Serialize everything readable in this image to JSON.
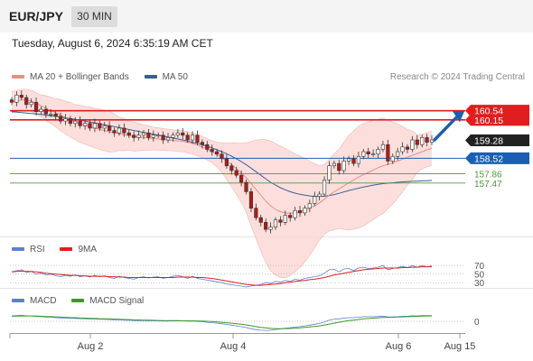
{
  "header": {
    "symbol": "EUR/JPY",
    "timeframe": "30 MIN",
    "datetime": "Tuesday, August 6, 2024 6:35:19 AM CET"
  },
  "credit": "Research © 2024 Trading Central",
  "colors": {
    "bollinger": "#f28b82",
    "bollinger_fill": "#fbd9d6",
    "ma20": "#f28b82",
    "ma50": "#3b5d9a",
    "rsi": "#5b7fd6",
    "rsi_ma": "#e01e1e",
    "macd": "#5b7fd6",
    "macd_signal": "#3a9a2a",
    "resistance": "#e01e1e",
    "pivot": "#1a5fb4",
    "support": "#4c9a3a",
    "current": "#222222",
    "up_candle": "#ffffff",
    "down_candle": "#b01a1a",
    "arrow": "#1f5fa8"
  },
  "chart_data": [
    {
      "type": "candlestick",
      "title": "",
      "legend": [
        "MA 20 + Bollinger Bands",
        "MA 50"
      ],
      "ylim": [
        155.2,
        161.6
      ],
      "x_ticks": [
        "Aug 2",
        "Aug 4",
        "Aug 6",
        "Aug 15"
      ],
      "price_labels": [
        {
          "value": "160.54",
          "kind": "resistance"
        },
        {
          "value": "160.15",
          "kind": "resistance"
        },
        {
          "value": "159.28",
          "kind": "current"
        },
        {
          "value": "158.52",
          "kind": "pivot"
        },
        {
          "value": "157.86",
          "kind": "support"
        },
        {
          "value": "157.47",
          "kind": "support"
        }
      ],
      "close": [
        160.9,
        161.2,
        161.1,
        160.8,
        160.9,
        160.5,
        160.6,
        160.4,
        160.4,
        160.3,
        160.1,
        160.2,
        160.0,
        160.1,
        159.9,
        160.0,
        159.8,
        160.0,
        159.8,
        159.9,
        159.7,
        159.6,
        159.8,
        159.6,
        159.5,
        159.4,
        159.5,
        159.6,
        159.4,
        159.5,
        159.5,
        159.3,
        159.4,
        159.5,
        159.6,
        159.5,
        159.3,
        159.5,
        159.2,
        159.1,
        158.9,
        158.8,
        158.7,
        158.5,
        158.2,
        158.0,
        157.8,
        157.5,
        157.1,
        156.4,
        156.0,
        155.8,
        155.5,
        155.6,
        155.9,
        155.8,
        156.1,
        156.0,
        156.3,
        156.2,
        156.4,
        156.6,
        156.9,
        157.0,
        157.6,
        158.2,
        158.3,
        158.0,
        158.4,
        158.5,
        158.3,
        158.6,
        158.8,
        158.7,
        158.7,
        158.9,
        159.1,
        158.4,
        158.6,
        158.8,
        159.0,
        158.9,
        159.3,
        159.1,
        159.4,
        159.2,
        159.3
      ],
      "ma20": [
        160.9,
        160.95,
        161.0,
        161.0,
        160.95,
        160.85,
        160.75,
        160.65,
        160.55,
        160.45,
        160.35,
        160.25,
        160.15,
        160.05,
        159.98,
        159.92,
        159.86,
        159.8,
        159.75,
        159.7,
        159.65,
        159.6,
        159.56,
        159.52,
        159.48,
        159.44,
        159.42,
        159.4,
        159.38,
        159.36,
        159.34,
        159.32,
        159.3,
        159.28,
        159.26,
        159.24,
        159.2,
        159.15,
        159.08,
        159.0,
        158.9,
        158.8,
        158.68,
        158.55,
        158.4,
        158.25,
        158.08,
        157.9,
        157.7,
        157.45,
        157.2,
        156.95,
        156.7,
        156.5,
        156.35,
        156.25,
        156.2,
        156.18,
        156.2,
        156.25,
        156.32,
        156.4,
        156.5,
        156.62,
        156.78,
        156.95,
        157.1,
        157.22,
        157.35,
        157.48,
        157.6,
        157.72,
        157.82,
        157.92,
        158.02,
        158.12,
        158.2,
        158.26,
        158.32,
        158.4,
        158.48,
        158.56,
        158.64,
        158.72,
        158.8,
        158.88,
        158.95
      ],
      "ma50": [
        160.5,
        160.48,
        160.46,
        160.44,
        160.42,
        160.4,
        160.38,
        160.35,
        160.32,
        160.3,
        160.27,
        160.24,
        160.2,
        160.17,
        160.14,
        160.1,
        160.06,
        160.02,
        159.98,
        159.94,
        159.9,
        159.86,
        159.82,
        159.78,
        159.74,
        159.7,
        159.66,
        159.62,
        159.58,
        159.54,
        159.5,
        159.46,
        159.42,
        159.38,
        159.34,
        159.3,
        159.25,
        159.2,
        159.15,
        159.09,
        159.03,
        158.96,
        158.88,
        158.8,
        158.71,
        158.61,
        158.5,
        158.38,
        158.25,
        158.1,
        157.95,
        157.8,
        157.65,
        157.5,
        157.38,
        157.27,
        157.18,
        157.1,
        157.04,
        156.99,
        156.95,
        156.92,
        156.9,
        156.9,
        156.91,
        156.94,
        156.98,
        157.03,
        157.09,
        157.15,
        157.2,
        157.25,
        157.3,
        157.34,
        157.38,
        157.41,
        157.44,
        157.46,
        157.48,
        157.5,
        157.52,
        157.53,
        157.54,
        157.55,
        157.56,
        157.57,
        157.58
      ]
    },
    {
      "type": "line",
      "title": "",
      "legend": [
        "RSI",
        "9MA"
      ],
      "levels": [
        "70",
        "50",
        "30"
      ],
      "ylim": [
        20,
        85
      ],
      "rsi": [
        55,
        58,
        60,
        54,
        56,
        50,
        52,
        48,
        50,
        46,
        44,
        47,
        45,
        48,
        44,
        46,
        43,
        47,
        44,
        46,
        42,
        40,
        45,
        42,
        40,
        38,
        42,
        44,
        41,
        43,
        44,
        40,
        42,
        45,
        47,
        44,
        40,
        45,
        40,
        38,
        36,
        34,
        32,
        30,
        27,
        25,
        24,
        22,
        20,
        22,
        24,
        26,
        30,
        28,
        33,
        31,
        35,
        33,
        38,
        36,
        40,
        42,
        44,
        46,
        52,
        60,
        61,
        55,
        62,
        63,
        58,
        64,
        66,
        63,
        64,
        66,
        70,
        60,
        63,
        65,
        68,
        65,
        70,
        66,
        70,
        67,
        69
      ],
      "rsi_ma": [
        55,
        56,
        57,
        56,
        56,
        55,
        54,
        52,
        51,
        50,
        49,
        48,
        47,
        47,
        46,
        46,
        45,
        45,
        45,
        45,
        44,
        44,
        43,
        43,
        42,
        42,
        42,
        42,
        42,
        42,
        42,
        42,
        42,
        42,
        43,
        43,
        43,
        43,
        42,
        42,
        41,
        40,
        38,
        36,
        34,
        32,
        30,
        28,
        26,
        25,
        24,
        24,
        25,
        26,
        27,
        28,
        30,
        31,
        33,
        34,
        35,
        37,
        38,
        40,
        42,
        45,
        48,
        50,
        52,
        54,
        56,
        58,
        60,
        61,
        62,
        63,
        64,
        64,
        64,
        64,
        65,
        65,
        66,
        66,
        67,
        67,
        67
      ]
    },
    {
      "type": "line",
      "title": "",
      "legend": [
        "MACD",
        "MACD Signal"
      ],
      "levels": [
        "0"
      ],
      "ylim": [
        -0.9,
        0.9
      ],
      "macd": [
        0.45,
        0.48,
        0.5,
        0.46,
        0.44,
        0.4,
        0.38,
        0.35,
        0.34,
        0.3,
        0.28,
        0.27,
        0.25,
        0.24,
        0.22,
        0.21,
        0.19,
        0.19,
        0.17,
        0.16,
        0.14,
        0.12,
        0.12,
        0.1,
        0.08,
        0.06,
        0.06,
        0.06,
        0.04,
        0.04,
        0.04,
        0.02,
        0.02,
        0.03,
        0.04,
        0.03,
        0.01,
        0.02,
        -0.01,
        -0.04,
        -0.08,
        -0.12,
        -0.16,
        -0.2,
        -0.26,
        -0.32,
        -0.38,
        -0.45,
        -0.52,
        -0.62,
        -0.7,
        -0.74,
        -0.76,
        -0.74,
        -0.68,
        -0.64,
        -0.58,
        -0.54,
        -0.48,
        -0.44,
        -0.38,
        -0.32,
        -0.25,
        -0.18,
        -0.05,
        0.1,
        0.18,
        0.2,
        0.26,
        0.3,
        0.3,
        0.34,
        0.38,
        0.38,
        0.38,
        0.4,
        0.43,
        0.36,
        0.36,
        0.38,
        0.42,
        0.42,
        0.46,
        0.45,
        0.48,
        0.47,
        0.48
      ],
      "macd_signal": [
        0.42,
        0.43,
        0.44,
        0.44,
        0.44,
        0.43,
        0.42,
        0.4,
        0.39,
        0.37,
        0.35,
        0.33,
        0.31,
        0.3,
        0.28,
        0.27,
        0.25,
        0.24,
        0.22,
        0.21,
        0.2,
        0.18,
        0.17,
        0.15,
        0.14,
        0.12,
        0.11,
        0.1,
        0.09,
        0.08,
        0.07,
        0.06,
        0.05,
        0.05,
        0.05,
        0.04,
        0.04,
        0.04,
        0.03,
        0.02,
        0.0,
        -0.02,
        -0.05,
        -0.08,
        -0.12,
        -0.16,
        -0.2,
        -0.25,
        -0.3,
        -0.37,
        -0.44,
        -0.5,
        -0.55,
        -0.59,
        -0.61,
        -0.62,
        -0.61,
        -0.6,
        -0.57,
        -0.55,
        -0.51,
        -0.47,
        -0.43,
        -0.38,
        -0.31,
        -0.23,
        -0.15,
        -0.08,
        -0.01,
        0.05,
        0.1,
        0.15,
        0.2,
        0.23,
        0.26,
        0.29,
        0.32,
        0.33,
        0.34,
        0.35,
        0.37,
        0.38,
        0.4,
        0.41,
        0.43,
        0.44,
        0.45
      ]
    }
  ]
}
